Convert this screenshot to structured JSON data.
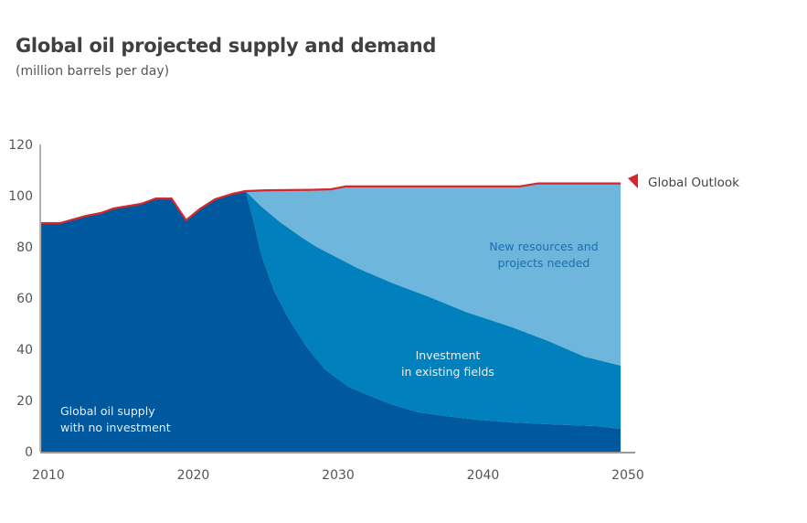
{
  "chart_data": {
    "type": "area",
    "title": "Global oil projected supply and demand",
    "subtitle": "(million barrels per day)",
    "xlabel": "",
    "ylabel": "",
    "xlim": [
      2009.5,
      2049.5
    ],
    "ylim": [
      0,
      120
    ],
    "x_ticks": [
      2010,
      2020,
      2030,
      2040,
      2050
    ],
    "y_ticks": [
      0,
      20,
      40,
      60,
      80,
      100,
      120
    ],
    "grid": false,
    "colors": {
      "no_investment": "#00599e",
      "investment": "#0080bd",
      "new_resources": "#6fb6dc",
      "outlook": "#d9262c",
      "axis": "#999999"
    },
    "series": [
      {
        "name": "Global Outlook",
        "kind": "line",
        "points": [
          [
            2009.5,
            89.3
          ],
          [
            2010.8,
            89.3
          ],
          [
            2011.7,
            90.7
          ],
          [
            2012.6,
            92.1
          ],
          [
            2013.6,
            93.2
          ],
          [
            2014.5,
            95.0
          ],
          [
            2016.4,
            96.8
          ],
          [
            2017.4,
            98.9
          ],
          [
            2018.5,
            98.9
          ],
          [
            2019.5,
            90.4
          ],
          [
            2020.5,
            95.0
          ],
          [
            2021.5,
            98.6
          ],
          [
            2022.7,
            100.7
          ],
          [
            2023.6,
            101.8
          ],
          [
            2025.0,
            102.1
          ],
          [
            2028.0,
            102.3
          ],
          [
            2029.5,
            102.5
          ],
          [
            2030.5,
            103.6
          ],
          [
            2042.5,
            103.6
          ],
          [
            2043.8,
            104.8
          ],
          [
            2049.5,
            104.8
          ]
        ]
      },
      {
        "name": "Global oil supply with no investment",
        "kind": "area",
        "points": [
          [
            2009.5,
            89.3
          ],
          [
            2010.8,
            89.3
          ],
          [
            2011.7,
            90.7
          ],
          [
            2012.6,
            92.1
          ],
          [
            2013.6,
            93.2
          ],
          [
            2014.5,
            95.0
          ],
          [
            2016.4,
            96.8
          ],
          [
            2017.4,
            98.9
          ],
          [
            2018.5,
            98.9
          ],
          [
            2019.5,
            90.4
          ],
          [
            2020.5,
            95.0
          ],
          [
            2021.5,
            98.6
          ],
          [
            2022.7,
            100.7
          ],
          [
            2023.6,
            101.8
          ],
          [
            2024.1,
            91.4
          ],
          [
            2024.7,
            76.8
          ],
          [
            2025.6,
            62.5
          ],
          [
            2026.6,
            51.8
          ],
          [
            2027.8,
            41.1
          ],
          [
            2029.1,
            32.1
          ],
          [
            2030.7,
            25.4
          ],
          [
            2031.6,
            23.2
          ],
          [
            2033.6,
            18.6
          ],
          [
            2035.5,
            15.4
          ],
          [
            2037.4,
            13.9
          ],
          [
            2039.6,
            12.5
          ],
          [
            2042.1,
            11.4
          ],
          [
            2044.6,
            10.7
          ],
          [
            2047.8,
            10.0
          ],
          [
            2049.5,
            8.9
          ]
        ]
      },
      {
        "name": "Investment in existing fields",
        "kind": "area",
        "points": [
          [
            2023.6,
            101.8
          ],
          [
            2024.7,
            95.7
          ],
          [
            2026.0,
            89.6
          ],
          [
            2027.5,
            83.6
          ],
          [
            2028.5,
            80.0
          ],
          [
            2031.3,
            71.8
          ],
          [
            2033.8,
            65.7
          ],
          [
            2036.3,
            60.4
          ],
          [
            2038.8,
            54.6
          ],
          [
            2042.0,
            48.6
          ],
          [
            2044.5,
            43.2
          ],
          [
            2047.0,
            37.1
          ],
          [
            2049.5,
            33.6
          ]
        ]
      },
      {
        "name": "New resources and projects needed",
        "kind": "area",
        "note": "gap between Global Outlook and investment in existing fields"
      }
    ],
    "annotations": [
      {
        "text": "New resources and projects needed",
        "lines": [
          "New resources and",
          "projects needed"
        ]
      },
      {
        "text": "Investment in existing fields",
        "lines": [
          "Investment",
          "in existing fields"
        ]
      },
      {
        "text": "Global oil supply with no investment",
        "lines": [
          "Global oil supply",
          "with no investment"
        ]
      }
    ],
    "legend": {
      "label": "Global Outlook",
      "marker": "triangle-left",
      "placement": "right"
    }
  }
}
